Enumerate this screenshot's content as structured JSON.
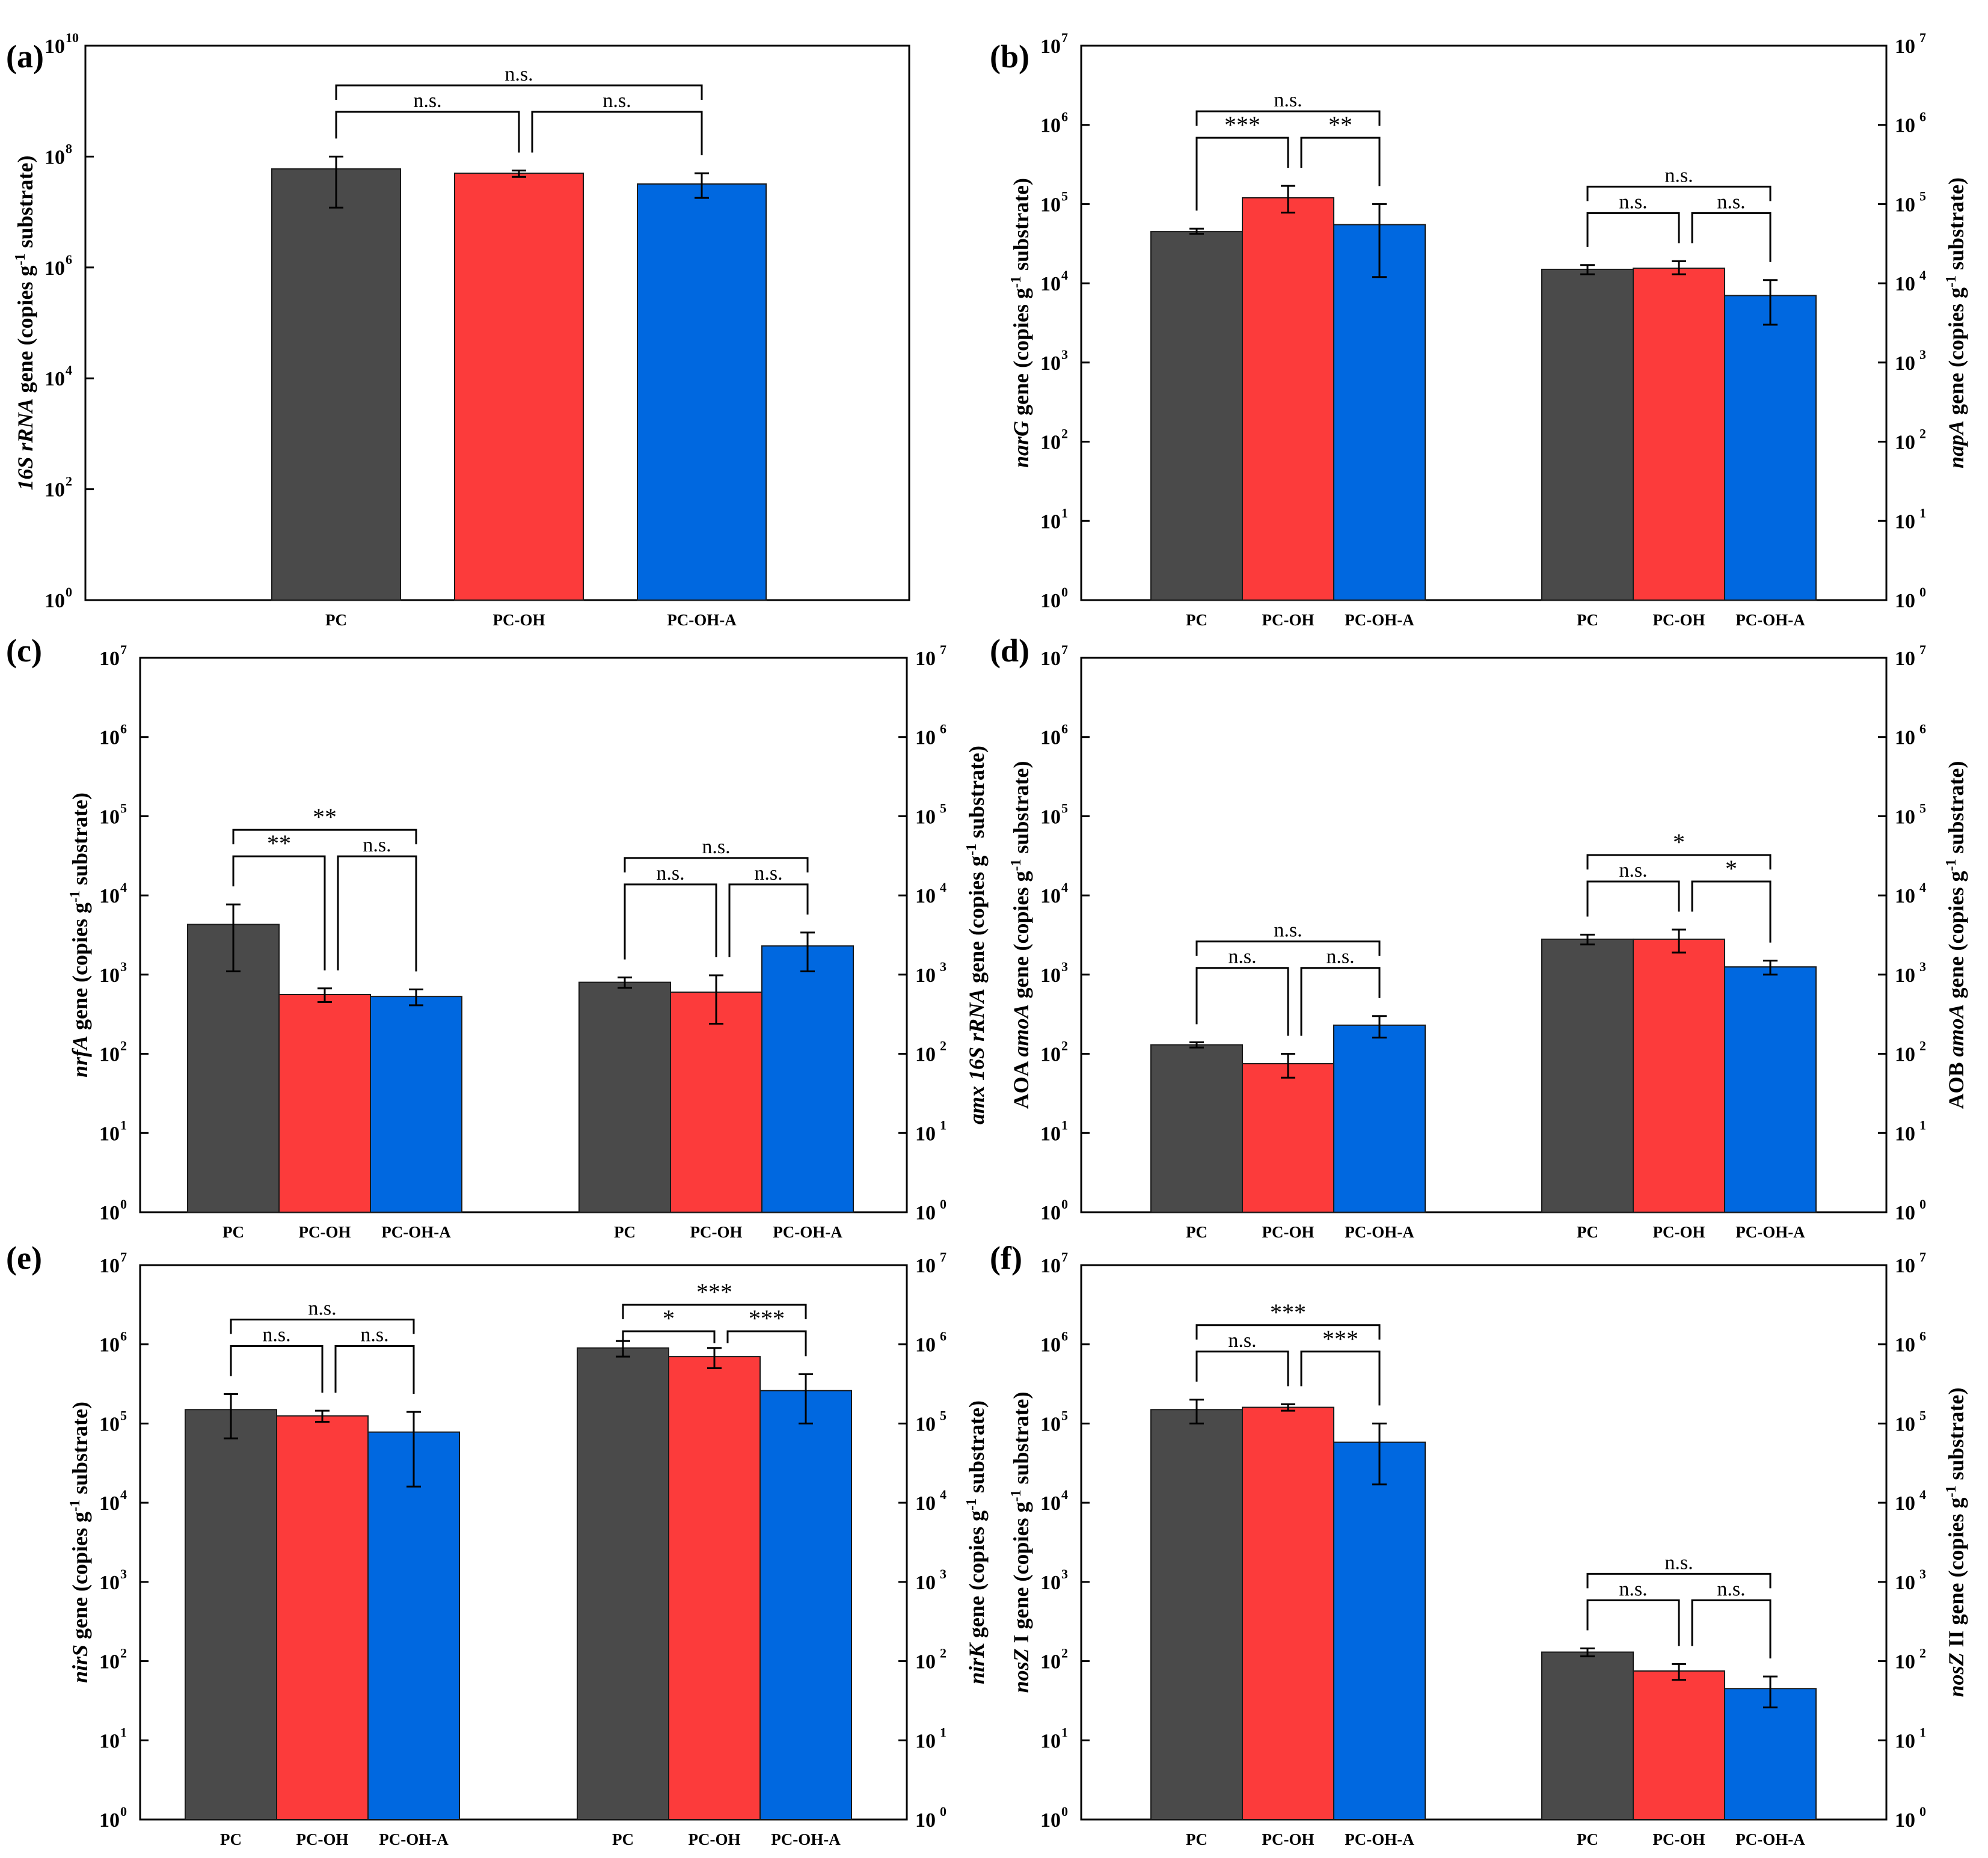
{
  "colors": {
    "PC": "#4a4a4a",
    "PC-OH": "#fc3b3b",
    "PC-OH-A": "#0068e0",
    "axis": "#000000"
  },
  "chart_data": [
    {
      "panel": "(a)",
      "type": "bar",
      "yscale": "log",
      "ylim_exp": [
        0,
        10
      ],
      "ytick_step": 2,
      "ylabel": [
        {
          "t": "16S rRNA",
          "i": true
        },
        {
          "t": " gene (copies g",
          "i": false
        },
        {
          "t": "-1",
          "sup": true
        },
        {
          "t": " substrate)",
          "i": false
        }
      ],
      "groups": [
        {
          "categories": [
            "PC",
            "PC-OH",
            "PC-OH-A"
          ],
          "values": [
            60000000.0,
            50000000.0,
            32000000.0
          ],
          "err": [
            [
              12000000.0,
              100000000.0
            ],
            [
              43000000.0,
              56000000.0
            ],
            [
              18000000.0,
              50000000.0
            ]
          ],
          "sig": [
            {
              "from": 0,
              "to": 1,
              "label": "n.s.",
              "level": 0
            },
            {
              "from": 1,
              "to": 2,
              "label": "n.s.",
              "level": 0
            },
            {
              "from": 0,
              "to": 2,
              "label": "n.s.",
              "level": 1
            }
          ]
        }
      ]
    },
    {
      "panel": "(b)",
      "type": "bar",
      "yscale": "log",
      "ylim_exp": [
        0,
        7
      ],
      "ytick_step": 1,
      "ylabel": [
        {
          "t": "narG",
          "i": true
        },
        {
          "t": " gene (copies g",
          "i": false
        },
        {
          "t": "-1",
          "sup": true
        },
        {
          "t": " substrate)",
          "i": false
        }
      ],
      "ylabel_right": [
        {
          "t": "napA",
          "i": true
        },
        {
          "t": " gene (copies g",
          "i": false
        },
        {
          "t": "-1",
          "sup": true
        },
        {
          "t": " substrate)",
          "i": false
        }
      ],
      "groups": [
        {
          "categories": [
            "PC",
            "PC-OH",
            "PC-OH-A"
          ],
          "values": [
            45000.0,
            120000.0,
            55000.0
          ],
          "err": [
            [
              42000.0,
              49000.0
            ],
            [
              78000.0,
              170000.0
            ],
            [
              12000.0,
              100000.0
            ]
          ],
          "sig": [
            {
              "from": 0,
              "to": 1,
              "label": "***",
              "level": 0
            },
            {
              "from": 1,
              "to": 2,
              "label": "**",
              "level": 0
            },
            {
              "from": 0,
              "to": 2,
              "label": "n.s.",
              "level": 1
            }
          ]
        },
        {
          "categories": [
            "PC",
            "PC-OH",
            "PC-OH-A"
          ],
          "values": [
            15000.0,
            15500.0,
            7000.0
          ],
          "err": [
            [
              13000.0,
              17000.0
            ],
            [
              13000.0,
              19000.0
            ],
            [
              3000.0,
              11000.0
            ]
          ],
          "sig": [
            {
              "from": 0,
              "to": 1,
              "label": "n.s.",
              "level": 0
            },
            {
              "from": 1,
              "to": 2,
              "label": "n.s.",
              "level": 0
            },
            {
              "from": 0,
              "to": 2,
              "label": "n.s.",
              "level": 1
            }
          ]
        }
      ]
    },
    {
      "panel": "(c)",
      "type": "bar",
      "yscale": "log",
      "ylim_exp": [
        0,
        7
      ],
      "ytick_step": 1,
      "ylabel": [
        {
          "t": "nrfA",
          "i": true
        },
        {
          "t": " gene (copies g",
          "i": false
        },
        {
          "t": "-1",
          "sup": true
        },
        {
          "t": " substrate)",
          "i": false
        }
      ],
      "ylabel_right": [
        {
          "t": "amx 16S rRNA",
          "i": true
        },
        {
          "t": " gene (copies g",
          "i": false
        },
        {
          "t": "-1",
          "sup": true
        },
        {
          "t": " substrate)",
          "i": false
        }
      ],
      "groups": [
        {
          "categories": [
            "PC",
            "PC-OH",
            "PC-OH-A"
          ],
          "values": [
            4300.0,
            560.0,
            530.0
          ],
          "err": [
            [
              1100.0,
              7700.0
            ],
            [
              450.0,
              670.0
            ],
            [
              410.0,
              650.0
            ]
          ],
          "sig": [
            {
              "from": 0,
              "to": 1,
              "label": "**",
              "level": 0
            },
            {
              "from": 1,
              "to": 2,
              "label": "n.s.",
              "level": 0
            },
            {
              "from": 0,
              "to": 2,
              "label": "**",
              "level": 1
            }
          ]
        },
        {
          "categories": [
            "PC",
            "PC-OH",
            "PC-OH-A"
          ],
          "values": [
            800.0,
            600.0,
            2300.0
          ],
          "err": [
            [
              680.0,
              920.0
            ],
            [
              240.0,
              980.0
            ],
            [
              1100.0,
              3400.0
            ]
          ],
          "sig": [
            {
              "from": 0,
              "to": 1,
              "label": "n.s.",
              "level": 0
            },
            {
              "from": 1,
              "to": 2,
              "label": "n.s.",
              "level": 0
            },
            {
              "from": 0,
              "to": 2,
              "label": "n.s.",
              "level": 1
            }
          ]
        }
      ]
    },
    {
      "panel": "(d)",
      "type": "bar",
      "yscale": "log",
      "ylim_exp": [
        0,
        7
      ],
      "ytick_step": 1,
      "ylabel": [
        {
          "t": "AOA ",
          "i": false
        },
        {
          "t": "amoA",
          "i": true
        },
        {
          "t": " gene (copies g",
          "i": false
        },
        {
          "t": "-1",
          "sup": true
        },
        {
          "t": " substrate)",
          "i": false
        }
      ],
      "ylabel_right": [
        {
          "t": "AOB ",
          "i": false
        },
        {
          "t": "amoA",
          "i": true
        },
        {
          "t": " gene (copies g",
          "i": false
        },
        {
          "t": "-1",
          "sup": true
        },
        {
          "t": " substrate)",
          "i": false
        }
      ],
      "groups": [
        {
          "categories": [
            "PC",
            "PC-OH",
            "PC-OH-A"
          ],
          "values": [
            130.0,
            75.0,
            230.0
          ],
          "err": [
            [
              120.0,
              140.0
            ],
            [
              50.0,
              100.0
            ],
            [
              160.0,
              300.0
            ]
          ],
          "sig": [
            {
              "from": 0,
              "to": 1,
              "label": "n.s.",
              "level": 0
            },
            {
              "from": 1,
              "to": 2,
              "label": "n.s.",
              "level": 0
            },
            {
              "from": 0,
              "to": 2,
              "label": "n.s.",
              "level": 1
            }
          ]
        },
        {
          "categories": [
            "PC",
            "PC-OH",
            "PC-OH-A"
          ],
          "values": [
            2800.0,
            2800.0,
            1250.0
          ],
          "err": [
            [
              2400.0,
              3200.0
            ],
            [
              1900.0,
              3700.0
            ],
            [
              1000.0,
              1500.0
            ]
          ],
          "sig": [
            {
              "from": 0,
              "to": 1,
              "label": "n.s.",
              "level": 0
            },
            {
              "from": 1,
              "to": 2,
              "label": "*",
              "level": 0
            },
            {
              "from": 0,
              "to": 2,
              "label": "*",
              "level": 1
            }
          ]
        }
      ]
    },
    {
      "panel": "(e)",
      "type": "bar",
      "yscale": "log",
      "ylim_exp": [
        0,
        7
      ],
      "ytick_step": 1,
      "ylabel": [
        {
          "t": "nirS",
          "i": true
        },
        {
          "t": " gene (copies g",
          "i": false
        },
        {
          "t": "-1",
          "sup": true
        },
        {
          "t": " substrate)",
          "i": false
        }
      ],
      "ylabel_right": [
        {
          "t": "nirK",
          "i": true
        },
        {
          "t": " gene (copies g",
          "i": false
        },
        {
          "t": "-1",
          "sup": true
        },
        {
          "t": " substrate)",
          "i": false
        }
      ],
      "groups": [
        {
          "categories": [
            "PC",
            "PC-OH",
            "PC-OH-A"
          ],
          "values": [
            150000.0,
            125000.0,
            78000.0
          ],
          "err": [
            [
              65000.0,
              235000.0
            ],
            [
              105000.0,
              145000.0
            ],
            [
              16000.0,
              140000.0
            ]
          ],
          "sig": [
            {
              "from": 0,
              "to": 1,
              "label": "n.s.",
              "level": 0
            },
            {
              "from": 1,
              "to": 2,
              "label": "n.s.",
              "level": 0
            },
            {
              "from": 0,
              "to": 2,
              "label": "n.s.",
              "level": 1
            }
          ]
        },
        {
          "categories": [
            "PC",
            "PC-OH",
            "PC-OH-A"
          ],
          "values": [
            900000.0,
            700000.0,
            260000.0
          ],
          "err": [
            [
              700000.0,
              1100000.0
            ],
            [
              500000.0,
              900000.0
            ],
            [
              100000.0,
              420000.0
            ]
          ],
          "sig": [
            {
              "from": 0,
              "to": 1,
              "label": "*",
              "level": 0
            },
            {
              "from": 1,
              "to": 2,
              "label": "***",
              "level": 0
            },
            {
              "from": 0,
              "to": 2,
              "label": "***",
              "level": 1
            }
          ]
        }
      ]
    },
    {
      "panel": "(f)",
      "type": "bar",
      "yscale": "log",
      "ylim_exp": [
        0,
        7
      ],
      "ytick_step": 1,
      "ylabel": [
        {
          "t": "nosZ",
          "i": true
        },
        {
          "t": " I gene (copies g",
          "i": false
        },
        {
          "t": "-1",
          "sup": true
        },
        {
          "t": " substrate)",
          "i": false
        }
      ],
      "ylabel_right": [
        {
          "t": "nosZ",
          "i": true
        },
        {
          "t": " II gene (copies g",
          "i": false
        },
        {
          "t": "-1",
          "sup": true
        },
        {
          "t": " substrate)",
          "i": false
        }
      ],
      "groups": [
        {
          "categories": [
            "PC",
            "PC-OH",
            "PC-OH-A"
          ],
          "values": [
            150000.0,
            160000.0,
            58000.0
          ],
          "err": [
            [
              100000.0,
              200000.0
            ],
            [
              145000.0,
              175000.0
            ],
            [
              17000.0,
              100000.0
            ]
          ],
          "sig": [
            {
              "from": 0,
              "to": 1,
              "label": "n.s.",
              "level": 0
            },
            {
              "from": 1,
              "to": 2,
              "label": "***",
              "level": 0
            },
            {
              "from": 0,
              "to": 2,
              "label": "***",
              "level": 1
            }
          ]
        },
        {
          "categories": [
            "PC",
            "PC-OH",
            "PC-OH-A"
          ],
          "values": [
            130.0,
            75.0,
            45.0
          ],
          "err": [
            [
              115.0,
              145.0
            ],
            [
              58.0,
              92.0
            ],
            [
              26.0,
              64.0
            ]
          ],
          "sig": [
            {
              "from": 0,
              "to": 1,
              "label": "n.s.",
              "level": 0
            },
            {
              "from": 1,
              "to": 2,
              "label": "n.s.",
              "level": 0
            },
            {
              "from": 0,
              "to": 2,
              "label": "n.s.",
              "level": 1
            }
          ]
        }
      ]
    }
  ]
}
